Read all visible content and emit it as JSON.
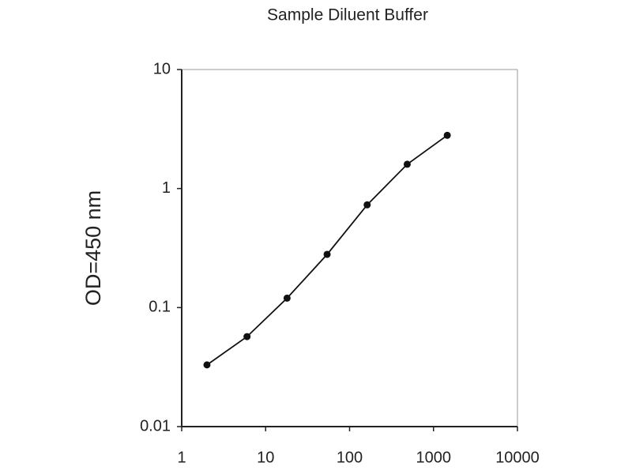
{
  "chart_data": {
    "type": "line",
    "title": "Sample Diluent Buffer",
    "y_label": "OD=450 nm",
    "x": [
      2,
      6,
      18,
      54,
      162,
      486,
      1458
    ],
    "values": [
      0.033,
      0.057,
      0.12,
      0.28,
      0.73,
      1.6,
      2.8
    ],
    "color": "#111111",
    "xlim": [
      1,
      10000
    ],
    "xticks": [
      1,
      10,
      100,
      1000,
      10000
    ],
    "ylim": [
      0.01,
      10
    ],
    "yticks": [
      0.01,
      0.1,
      1,
      10
    ],
    "x_log": true,
    "y_log": true,
    "grid": false
  }
}
